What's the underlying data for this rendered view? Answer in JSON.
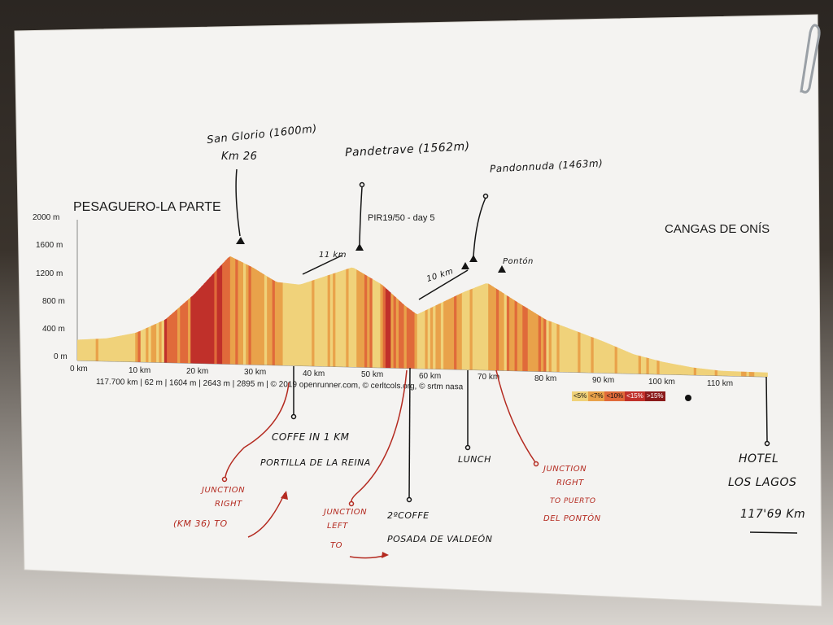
{
  "chart": {
    "title_start": "PESAGUERO-LA PARTE",
    "title_end": "CANGAS DE ONÍS",
    "subtitle": "PIR19/50 - day 5",
    "y_ticks": [
      "2000 m",
      "1600 m",
      "1200 m",
      "800 m",
      "400 m",
      "0 m"
    ],
    "x_ticks": [
      "0 km",
      "10 km",
      "20 km",
      "30 km",
      "40 km",
      "50 km",
      "60 km",
      "70 km",
      "80 km",
      "90 km",
      "100 km",
      "110 km"
    ],
    "stats_line": "117.700 km |     62 m |     1604 m |     2643 m |     2895 m | © 2019 openrunner.com, © cerltcols.org, © srtm nasa",
    "legend": [
      "<5%",
      "<7%",
      "<10%",
      "<15%",
      ">15%"
    ],
    "legend_colors": [
      "#f0d27a",
      "#e9a24a",
      "#e06a3a",
      "#c0302a",
      "#8a1a1a"
    ]
  },
  "chart_data": {
    "type": "area",
    "title": "PESAGUERO-LA PARTE — CANGAS DE ONÍS",
    "xlabel": "km",
    "ylabel": "m",
    "ylim": [
      0,
      2000
    ],
    "xlim": [
      0,
      117.7
    ],
    "x": [
      0,
      5,
      10,
      15,
      20,
      26,
      30,
      34,
      38,
      42,
      47,
      52,
      56,
      58,
      62,
      66,
      70,
      75,
      80,
      85,
      90,
      95,
      100,
      105,
      110,
      117.7
    ],
    "y": [
      300,
      330,
      420,
      620,
      1000,
      1560,
      1400,
      1200,
      1170,
      1290,
      1440,
      1200,
      900,
      780,
      950,
      1120,
      1260,
      1000,
      750,
      600,
      450,
      280,
      180,
      110,
      70,
      62
    ]
  },
  "annotations": {
    "san_glorio": "San Glorio (1600m)",
    "san_glorio_km": "Km 26",
    "pandetrave": "Pandetrave (1562m)",
    "pandonnuda": "Pandonnuda (1463m)",
    "km11": "11 km",
    "km10": "10 km",
    "ponton": "Pontón",
    "coffee1": "COFFE IN 1 KM",
    "portilla": "PORTILLA DE LA REINA",
    "lunch": "LUNCH",
    "hotel1": "HOTEL",
    "hotel2": "LOS LAGOS",
    "hotel_km": "117'69 Km",
    "junction1_a": "JUNCTION",
    "junction1_b": "RIGHT",
    "junction1_c": "(KM 36) TO",
    "junction2_a": "JUNCTION",
    "junction2_b": "LEFT",
    "junction2_c": "TO",
    "coffee2": "2ºCOFFE",
    "posada": "POSADA DE VALDEÓN",
    "junction3_a": "JUNCTION",
    "junction3_b": "RIGHT",
    "junction3_c": "TO PUERTO",
    "junction3_d": "DEL PONTÓN"
  }
}
